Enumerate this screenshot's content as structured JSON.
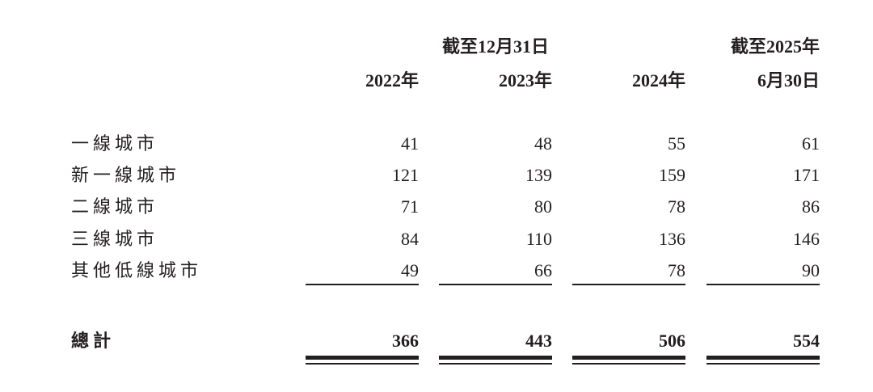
{
  "header": {
    "group1_title": "截至12月31日",
    "group2_title": "截至2025年",
    "columns": [
      "2022年",
      "2023年",
      "2024年",
      "6月30日"
    ]
  },
  "rows": [
    {
      "label": "一線城市",
      "values": [
        "41",
        "48",
        "55",
        "61"
      ]
    },
    {
      "label": "新一線城市",
      "values": [
        "121",
        "139",
        "159",
        "171"
      ]
    },
    {
      "label": "二線城市",
      "values": [
        "71",
        "80",
        "78",
        "86"
      ]
    },
    {
      "label": "三線城市",
      "values": [
        "84",
        "110",
        "136",
        "146"
      ]
    },
    {
      "label": "其他低線城市",
      "values": [
        "49",
        "66",
        "78",
        "90"
      ]
    }
  ],
  "total": {
    "label": "總計",
    "values": [
      "366",
      "443",
      "506",
      "554"
    ]
  }
}
